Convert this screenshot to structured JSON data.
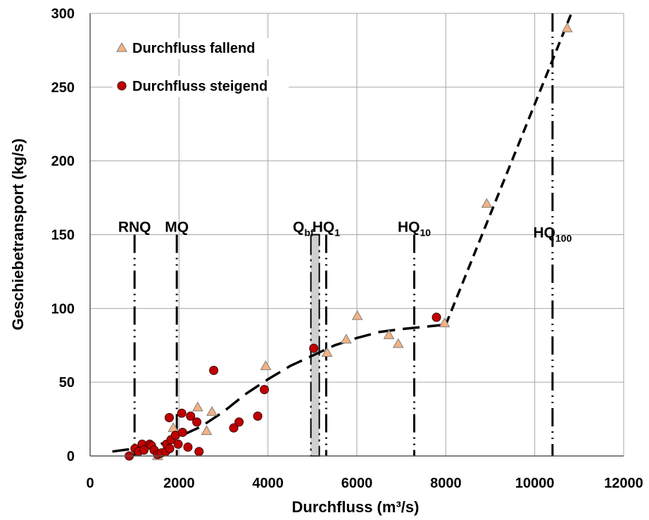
{
  "chart_data": {
    "type": "scatter",
    "xlabel": "Durchfluss (m³/s)",
    "ylabel": "Geschiebetransport (kg/s)",
    "xlim": [
      0,
      12000
    ],
    "ylim": [
      0,
      300
    ],
    "x_ticks": [
      "0",
      "2000",
      "4000",
      "6000",
      "8000",
      "10000",
      "12000"
    ],
    "y_ticks": [
      "0",
      "50",
      "100",
      "150",
      "200",
      "250",
      "300"
    ],
    "grid": true,
    "legend_position": "top-left",
    "series": [
      {
        "name": "Durchfluss fallend",
        "marker": "triangle",
        "color": "#F4B183",
        "points": [
          [
            1520,
            0
          ],
          [
            1870,
            19
          ],
          [
            2420,
            33
          ],
          [
            2620,
            17
          ],
          [
            2740,
            30
          ],
          [
            3950,
            61
          ],
          [
            5330,
            70
          ],
          [
            5760,
            79
          ],
          [
            6010,
            95
          ],
          [
            6720,
            82
          ],
          [
            6930,
            76
          ],
          [
            7970,
            90
          ],
          [
            8920,
            171
          ],
          [
            10730,
            290
          ]
        ]
      },
      {
        "name": "Durchfluss steigend",
        "marker": "circle",
        "color": "#C00000",
        "points": [
          [
            880,
            0
          ],
          [
            1010,
            5
          ],
          [
            1090,
            3
          ],
          [
            1170,
            8
          ],
          [
            1210,
            4
          ],
          [
            1340,
            8
          ],
          [
            1380,
            7
          ],
          [
            1440,
            4
          ],
          [
            1520,
            1
          ],
          [
            1600,
            2
          ],
          [
            1700,
            3
          ],
          [
            1720,
            8
          ],
          [
            1780,
            26
          ],
          [
            1790,
            5
          ],
          [
            1820,
            11
          ],
          [
            1920,
            14
          ],
          [
            1980,
            8
          ],
          [
            2060,
            29
          ],
          [
            2080,
            16
          ],
          [
            2200,
            6
          ],
          [
            2260,
            27
          ],
          [
            2400,
            23
          ],
          [
            2450,
            3
          ],
          [
            2780,
            58
          ],
          [
            3230,
            19
          ],
          [
            3350,
            23
          ],
          [
            3770,
            27
          ],
          [
            3920,
            45
          ],
          [
            5030,
            73
          ],
          [
            7790,
            94
          ]
        ]
      }
    ],
    "trend_lines": [
      {
        "style": "dashed",
        "points": [
          [
            500,
            3
          ],
          [
            1500,
            7
          ],
          [
            2000,
            13
          ],
          [
            2500,
            20
          ],
          [
            3000,
            30
          ],
          [
            3500,
            42
          ],
          [
            4000,
            52
          ],
          [
            4500,
            61
          ],
          [
            5000,
            68
          ],
          [
            5500,
            75
          ],
          [
            6000,
            80
          ],
          [
            6500,
            84
          ],
          [
            7000,
            86
          ],
          [
            7500,
            87.5
          ],
          [
            8000,
            89
          ]
        ]
      },
      {
        "style": "dashed",
        "points": [
          [
            8000,
            89
          ],
          [
            10850,
            302
          ]
        ]
      }
    ],
    "reference_lines": [
      {
        "label": "RNQ",
        "x": 1000,
        "y_top": 150,
        "style": "dash-dot-dot"
      },
      {
        "label": "MQ",
        "x": 1950,
        "y_top": 150,
        "style": "dash-dot-dot"
      },
      {
        "label": "Q",
        "sub": "bf",
        "x": 5060,
        "y_top": 150,
        "style": "band"
      },
      {
        "label": "HQ",
        "sub": "1",
        "x": 5310,
        "y_top": 150,
        "style": "dash-dot-dot"
      },
      {
        "label": "HQ",
        "sub": "10",
        "x": 7290,
        "y_top": 150,
        "style": "dash-dot-dot"
      },
      {
        "label": "HQ",
        "sub": "100",
        "x": 10400,
        "y_top": 300,
        "style": "dash-dot-dot"
      }
    ]
  }
}
